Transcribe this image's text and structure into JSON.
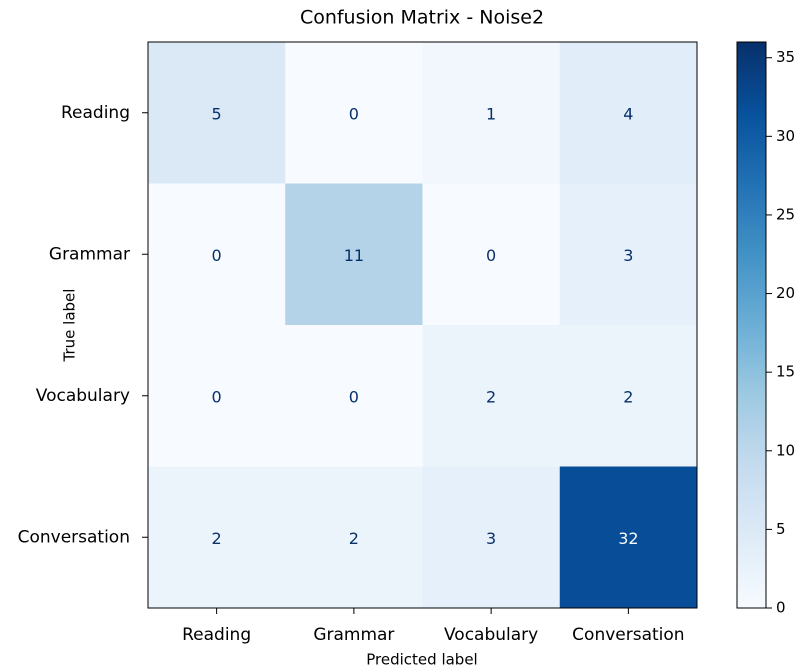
{
  "chart_data": {
    "type": "heatmap",
    "title": "Confusion Matrix - Noise2",
    "xlabel": "Predicted label",
    "ylabel": "True label",
    "x_categories": [
      "Reading",
      "Grammar",
      "Vocabulary",
      "Conversation"
    ],
    "y_categories": [
      "Reading",
      "Grammar",
      "Vocabulary",
      "Conversation"
    ],
    "values": [
      [
        5,
        0,
        1,
        4
      ],
      [
        0,
        11,
        0,
        3
      ],
      [
        0,
        0,
        2,
        2
      ],
      [
        2,
        2,
        3,
        32
      ]
    ],
    "colormap": "Blues",
    "zlim": [
      0,
      36
    ],
    "zticks": [
      0,
      5,
      10,
      15,
      20,
      25,
      30,
      35
    ]
  }
}
